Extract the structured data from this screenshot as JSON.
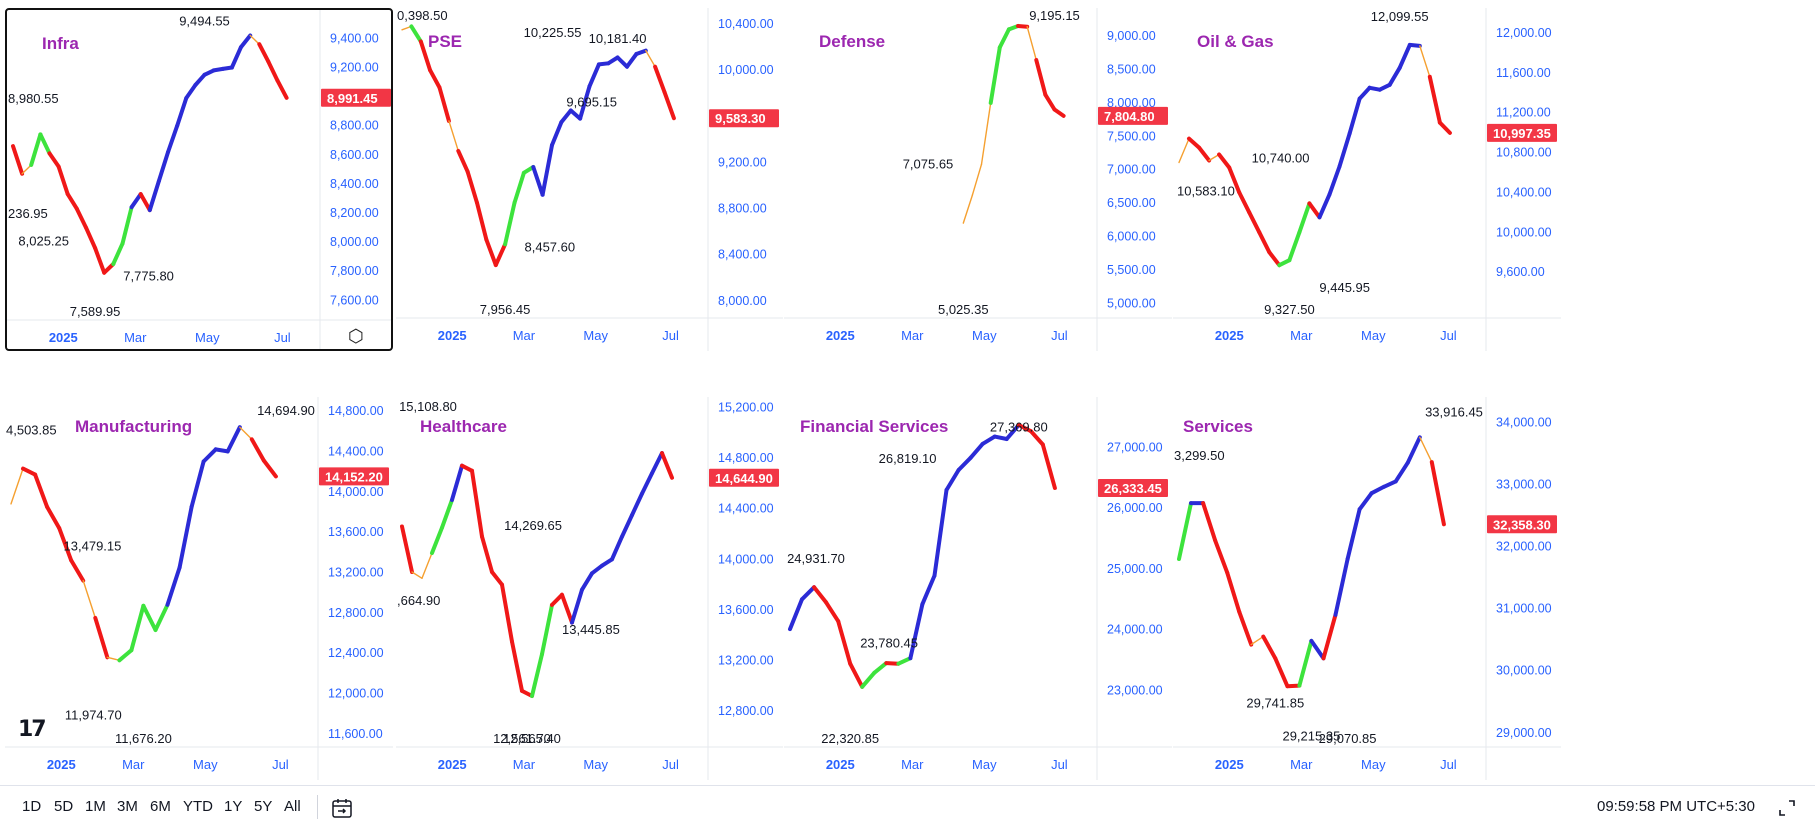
{
  "colors": {
    "accent_title": "#9c27b0",
    "price_tag": "#f23645",
    "axis_text": "#2962ff",
    "seg_up_strong": "#2b2bd6",
    "seg_up": "#3de33d",
    "seg_down": "#f01818",
    "seg_neutral": "#f5a030"
  },
  "chart_data": [
    {
      "type": "line",
      "title": "Infra",
      "x_labels": [
        "2025",
        "Mar",
        "May",
        "Jul"
      ],
      "y_ticks": [
        "9,400.00",
        "9,200.00",
        "9,000.00",
        "8,800.00",
        "8,600.00",
        "8,400.00",
        "8,200.00",
        "8,000.00",
        "7,800.00",
        "7,600.00"
      ],
      "ylim": [
        7520,
        9540
      ],
      "last_price": "8,991.45",
      "annotations": [
        {
          "text": "9,494.55",
          "at": [
            21,
            9420
          ],
          "pos": "above"
        },
        {
          "text": "8,980.55",
          "at": [
            0,
            8990
          ],
          "pos": "edge-left"
        },
        {
          "text": "236.95",
          "at": [
            0,
            8200
          ],
          "pos": "edge-left"
        },
        {
          "text": "8,025.25",
          "at": [
            5,
            8010
          ],
          "pos": "left"
        },
        {
          "text": "7,775.80",
          "at": [
            11,
            7770
          ],
          "pos": "right"
        },
        {
          "text": "7,589.95",
          "at": [
            9,
            7590
          ],
          "pos": "below"
        }
      ],
      "series": [
        8660,
        8470,
        8530,
        8740,
        8610,
        8520,
        8330,
        8230,
        8100,
        7960,
        7790,
        7850,
        7990,
        8240,
        8330,
        8220,
        8420,
        8620,
        8800,
        8990,
        9080,
        9150,
        9180,
        9190,
        9200,
        9340,
        9420,
        9360,
        9240,
        9110,
        8991.45
      ],
      "colors": [
        "r",
        "n",
        "g",
        "g",
        "r",
        "r",
        "r",
        "r",
        "r",
        "r",
        "r",
        "g",
        "g",
        "b",
        "r",
        "b",
        "b",
        "b",
        "b",
        "b",
        "b",
        "b",
        "b",
        "b",
        "b",
        "b",
        "n",
        "r",
        "r",
        "r"
      ]
    },
    {
      "type": "line",
      "title": "PSE",
      "x_labels": [
        "2025",
        "Mar",
        "May",
        "Jul"
      ],
      "y_ticks": [
        "10,400.00",
        "10,000.00",
        "9,600.00",
        "9,200.00",
        "8,800.00",
        "8,400.00",
        "8,000.00"
      ],
      "ylim": [
        7920,
        10470
      ],
      "last_price": "9,583.30",
      "annotations": [
        {
          "text": "0,398.50",
          "at": [
            0,
            10400
          ],
          "pos": "edge-left-top"
        },
        {
          "text": "10,225.55",
          "at": [
            20,
            10200
          ],
          "pos": "above-left"
        },
        {
          "text": "10,181.40",
          "at": [
            23,
            10150
          ],
          "pos": "above"
        },
        {
          "text": "9,695.15",
          "at": [
            24,
            9730
          ],
          "pos": "left"
        },
        {
          "text": "8,457.60",
          "at": [
            12,
            8470
          ],
          "pos": "right"
        },
        {
          "text": "7,956.45",
          "at": [
            11,
            7960
          ],
          "pos": "below"
        }
      ],
      "series": [
        10350,
        10380,
        10250,
        10000,
        9850,
        9560,
        9300,
        9120,
        8850,
        8530,
        8310,
        8490,
        8850,
        9110,
        9160,
        8920,
        9350,
        9550,
        9650,
        9580,
        9860,
        10050,
        10060,
        10110,
        10030,
        10140,
        10170,
        10030,
        9810,
        9583.3
      ],
      "colors": [
        "n",
        "g",
        "r",
        "r",
        "r",
        "n",
        "r",
        "r",
        "r",
        "r",
        "r",
        "g",
        "g",
        "g",
        "b",
        "b",
        "b",
        "b",
        "b",
        "b",
        "b",
        "b",
        "b",
        "b",
        "b",
        "b",
        "n",
        "r",
        "r"
      ]
    },
    {
      "type": "line",
      "title": "Defense",
      "x_labels": [
        "2025",
        "Mar",
        "May",
        "Jul"
      ],
      "y_ticks": [
        "9,000.00",
        "8,500.00",
        "8,000.00",
        "7,500.00",
        "7,000.00",
        "6,500.00",
        "6,000.00",
        "5,500.00",
        "5,000.00"
      ],
      "ylim": [
        4900,
        9300
      ],
      "last_price": "7,804.80",
      "annotations": [
        {
          "text": "9,195.15",
          "at": [
            10,
            9180
          ],
          "pos": "above"
        },
        {
          "text": "7,075.65",
          "at": [
            0,
            7090
          ],
          "pos": "left"
        },
        {
          "text": "5,025.35",
          "at": [
            0,
            5020
          ],
          "pos": "below"
        }
      ],
      "series": [
        6200,
        6620,
        7080,
        8000,
        8830,
        9100,
        9150,
        9140,
        8640,
        8120,
        7900,
        7804.8
      ],
      "x_offset": 19,
      "colors": [
        "n",
        "n",
        "n",
        "g",
        "g",
        "g",
        "r",
        "n",
        "r",
        "r",
        "r"
      ]
    },
    {
      "type": "line",
      "title": "Oil & Gas",
      "x_labels": [
        "2025",
        "Mar",
        "May",
        "Jul"
      ],
      "y_ticks": [
        "12,000.00",
        "11,600.00",
        "11,200.00",
        "10,800.00",
        "10,400.00",
        "10,000.00",
        "9,600.00"
      ],
      "ylim": [
        9220,
        12170
      ],
      "last_price": "10,997.35",
      "annotations": [
        {
          "text": "12,099.55",
          "at": [
            22,
            12020
          ],
          "pos": "above"
        },
        {
          "text": "10,583.10",
          "at": [
            0,
            10590
          ],
          "pos": "left-below"
        },
        {
          "text": "10,740.00",
          "at": [
            14,
            10750
          ],
          "pos": "left"
        },
        {
          "text": "9,327.50",
          "at": [
            11,
            9330
          ],
          "pos": "below"
        },
        {
          "text": "9,445.95",
          "at": [
            13,
            9450
          ],
          "pos": "right"
        }
      ],
      "series": [
        10700,
        10940,
        10850,
        10720,
        10780,
        10650,
        10400,
        10200,
        10000,
        9800,
        9670,
        9720,
        10000,
        10290,
        10150,
        10380,
        10660,
        10990,
        11340,
        11450,
        11430,
        11480,
        11650,
        11880,
        11870,
        11560,
        11100,
        10997.35
      ],
      "colors": [
        "n",
        "r",
        "r",
        "n",
        "r",
        "r",
        "r",
        "r",
        "r",
        "r",
        "g",
        "g",
        "g",
        "r",
        "b",
        "b",
        "b",
        "b",
        "b",
        "b",
        "b",
        "b",
        "b",
        "b",
        "n",
        "r",
        "r"
      ]
    },
    {
      "type": "line",
      "title": "Manufacturing",
      "x_labels": [
        "2025",
        "Mar",
        "May",
        "Jul"
      ],
      "y_ticks": [
        "14,800.00",
        "14,400.00",
        "14,000.00",
        "13,600.00",
        "13,200.00",
        "12,800.00",
        "12,400.00",
        "12,000.00",
        "11,600.00"
      ],
      "ylim": [
        11550,
        14860
      ],
      "last_price": "14,152.20",
      "annotations": [
        {
          "text": "4,503.85",
          "at": [
            0,
            14510
          ],
          "pos": "edge-left-top"
        },
        {
          "text": "14,694.90",
          "at": [
            24,
            14660
          ],
          "pos": "above"
        },
        {
          "text": "13,479.15",
          "at": [
            10,
            13470
          ],
          "pos": "left"
        },
        {
          "text": "11,974.70",
          "at": [
            8,
            12000
          ],
          "pos": "below-left"
        },
        {
          "text": "11,676.20",
          "at": [
            11,
            11680
          ],
          "pos": "below"
        }
      ],
      "series": [
        13880,
        14230,
        14170,
        13850,
        13640,
        13320,
        13120,
        12750,
        12360,
        12330,
        12430,
        12870,
        12630,
        12880,
        13250,
        13850,
        14300,
        14420,
        14400,
        14640,
        14520,
        14310,
        14152.2
      ],
      "colors": [
        "n",
        "r",
        "r",
        "r",
        "r",
        "r",
        "n",
        "r",
        "n",
        "g",
        "g",
        "g",
        "g",
        "b",
        "b",
        "b",
        "b",
        "b",
        "b",
        "n",
        "r",
        "r"
      ]
    },
    {
      "type": "line",
      "title": "Healthcare",
      "x_labels": [
        "2025",
        "Mar",
        "May",
        "Jul"
      ],
      "y_ticks": [
        "15,200.00",
        "14,800.00",
        "14,400.00",
        "14,000.00",
        "13,600.00",
        "13,200.00",
        "12,800.00"
      ],
      "ylim": [
        12580,
        15220
      ],
      "last_price": "14,644.90",
      "annotations": [
        {
          "text": "15,108.80",
          "at": [
            2,
            15110
          ],
          "pos": "edge-top"
        },
        {
          "text": ",664.90",
          "at": [
            0,
            13680
          ],
          "pos": "edge-left"
        },
        {
          "text": "14,269.65",
          "at": [
            17,
            14270
          ],
          "pos": "left"
        },
        {
          "text": "13,445.85",
          "at": [
            15,
            13450
          ],
          "pos": "right"
        },
        {
          "text": "12,561.70",
          "at": [
            12,
            12562
          ],
          "pos": "below"
        },
        {
          "text": "12,565.40",
          "at": [
            13,
            12565
          ],
          "pos": "below"
        }
      ],
      "series": [
        14260,
        13900,
        13850,
        14050,
        14250,
        14470,
        14740,
        14700,
        14180,
        13900,
        13800,
        13350,
        12960,
        12920,
        13250,
        13640,
        13720,
        13500,
        13760,
        13890,
        13950,
        14000,
        14180,
        14350,
        14520,
        14680,
        14840,
        14644.9
      ],
      "colors": [
        "r",
        "n",
        "n",
        "g",
        "g",
        "b",
        "r",
        "r",
        "r",
        "r",
        "r",
        "r",
        "r",
        "g",
        "g",
        "r",
        "r",
        "b",
        "b",
        "b",
        "b",
        "b",
        "b",
        "b",
        "b",
        "b",
        "r",
        "r"
      ]
    },
    {
      "type": "line",
      "title": "Financial Services",
      "x_labels": [
        "2025",
        "Mar",
        "May",
        "Jul"
      ],
      "y_ticks": [
        "27,000.00",
        "26,000.00",
        "25,000.00",
        "24,000.00",
        "23,000.00"
      ],
      "ylim": [
        22200,
        27700
      ],
      "last_price": "26,333.45",
      "annotations": [
        {
          "text": "27,369.80",
          "at": [
            19,
            27100
          ],
          "pos": "above"
        },
        {
          "text": "26,819.10",
          "at": [
            13,
            26830
          ],
          "pos": "left"
        },
        {
          "text": "24,931.70",
          "at": [
            1,
            24930
          ],
          "pos": "above"
        },
        {
          "text": "23,780.45",
          "at": [
            5,
            23790
          ],
          "pos": "right"
        },
        {
          "text": "22,320.85",
          "at": [
            5,
            22320
          ],
          "pos": "below"
        }
      ],
      "series": [
        24010,
        24500,
        24700,
        24450,
        24140,
        23440,
        23060,
        23290,
        23450,
        23440,
        23530,
        24420,
        24890,
        26300,
        26630,
        26830,
        27060,
        27180,
        27140,
        27370,
        27270,
        27050,
        26333.45
      ],
      "colors": [
        "b",
        "b",
        "r",
        "r",
        "r",
        "r",
        "g",
        "g",
        "r",
        "g",
        "b",
        "b",
        "b",
        "b",
        "b",
        "b",
        "b",
        "b",
        "b",
        "r",
        "r",
        "r"
      ]
    },
    {
      "type": "line",
      "title": "Services",
      "x_labels": [
        "2025",
        "Mar",
        "May",
        "Jul"
      ],
      "y_ticks": [
        "34,000.00",
        "33,000.00",
        "32,000.00",
        "31,000.00",
        "30,000.00",
        "29,000.00"
      ],
      "ylim": [
        28900,
        34280
      ],
      "last_price": "32,358.30",
      "annotations": [
        {
          "text": "33,916.45",
          "at": [
            23,
            33930
          ],
          "pos": "above"
        },
        {
          "text": "3,299.50",
          "at": [
            0,
            33300
          ],
          "pos": "edge-left-top"
        },
        {
          "text": "29,741.85",
          "at": [
            8,
            29760
          ],
          "pos": "below"
        },
        {
          "text": "29,215.35",
          "at": [
            11,
            29230
          ],
          "pos": "below"
        },
        {
          "text": "29,070.85",
          "at": [
            14,
            29080
          ],
          "pos": "below"
        }
      ],
      "series": [
        31800,
        32700,
        32700,
        32100,
        31580,
        30950,
        30420,
        30550,
        30200,
        29750,
        29760,
        30480,
        30200,
        30900,
        31800,
        32600,
        32860,
        32960,
        33050,
        33350,
        33760,
        33360,
        32358.3
      ],
      "colors": [
        "g",
        "b",
        "r",
        "r",
        "r",
        "r",
        "n",
        "r",
        "r",
        "r",
        "g",
        "b",
        "r",
        "b",
        "b",
        "b",
        "b",
        "b",
        "b",
        "b",
        "n",
        "r"
      ]
    }
  ],
  "bottombar": {
    "ranges": [
      "1D",
      "5D",
      "1M",
      "3M",
      "6M",
      "YTD",
      "1Y",
      "5Y",
      "All"
    ],
    "timestamp": "09:59:58 PM UTC+5:30"
  },
  "icons": {
    "settings": "hexagon-gear-icon",
    "calendar": "calendar-goto-icon",
    "fullscreen": "fullscreen-icon",
    "logo": "tradingview-logo"
  },
  "logo_text": "17"
}
